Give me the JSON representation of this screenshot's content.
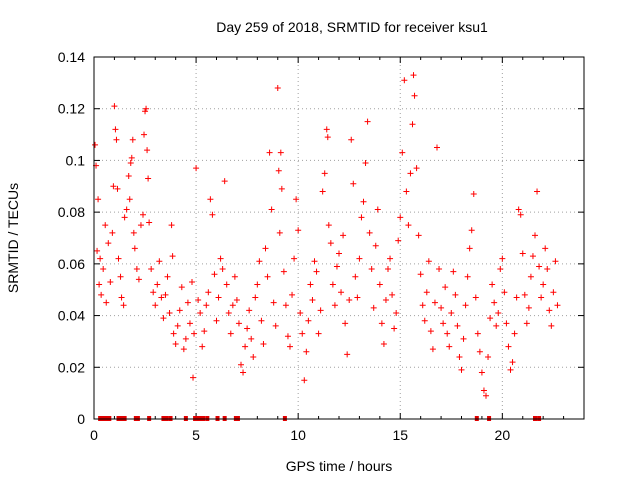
{
  "chart_data": {
    "type": "scatter",
    "title": "Day 259 of 2018, SRMTID for receiver ksu1",
    "xlabel": "GPS time / hours",
    "ylabel": "SRMTID / TECUs",
    "xlim": [
      0,
      24
    ],
    "ylim": [
      0,
      0.14
    ],
    "xticks": [
      0,
      5,
      10,
      15,
      20
    ],
    "xtick_labels": [
      "0",
      "5",
      "10",
      "15",
      "20"
    ],
    "yticks": [
      0,
      0.02,
      0.04,
      0.06,
      0.08,
      0.1,
      0.12,
      0.14
    ],
    "ytick_labels": [
      "0",
      "0.02",
      "0.04",
      "0.06",
      "0.08",
      "0.1",
      "0.12",
      "0.14"
    ],
    "grid": true,
    "marker": "plus",
    "color": "#ff0000",
    "series": [
      {
        "name": "SRMTID",
        "points": [
          [
            0.05,
            0.106
          ],
          [
            0.1,
            0.098
          ],
          [
            0.15,
            0.065
          ],
          [
            0.2,
            0.085
          ],
          [
            0.25,
            0.052
          ],
          [
            0.3,
            0.062
          ],
          [
            0.35,
            0.048
          ],
          [
            0.45,
            0.058
          ],
          [
            0.55,
            0.075
          ],
          [
            0.6,
            0.045
          ],
          [
            0.7,
            0.068
          ],
          [
            0.8,
            0.053
          ],
          [
            0.9,
            0.072
          ],
          [
            0.95,
            0.09
          ],
          [
            1.0,
            0.121
          ],
          [
            1.05,
            0.112
          ],
          [
            1.1,
            0.108
          ],
          [
            1.15,
            0.089
          ],
          [
            1.2,
            0.062
          ],
          [
            1.3,
            0.055
          ],
          [
            1.35,
            0.047
          ],
          [
            1.45,
            0.044
          ],
          [
            1.5,
            0.078
          ],
          [
            1.6,
            0.081
          ],
          [
            1.7,
            0.094
          ],
          [
            1.75,
            0.085
          ],
          [
            1.8,
            0.099
          ],
          [
            1.85,
            0.101
          ],
          [
            1.9,
            0.108
          ],
          [
            1.95,
            0.072
          ],
          [
            2.0,
            0.066
          ],
          [
            2.1,
            0.058
          ],
          [
            2.2,
            0.054
          ],
          [
            2.3,
            0.075
          ],
          [
            2.4,
            0.079
          ],
          [
            2.45,
            0.11
          ],
          [
            2.5,
            0.119
          ],
          [
            2.55,
            0.12
          ],
          [
            2.6,
            0.104
          ],
          [
            2.65,
            0.093
          ],
          [
            2.7,
            0.076
          ],
          [
            2.8,
            0.058
          ],
          [
            2.9,
            0.049
          ],
          [
            3.0,
            0.044
          ],
          [
            3.1,
            0.052
          ],
          [
            3.2,
            0.061
          ],
          [
            3.3,
            0.047
          ],
          [
            3.4,
            0.039
          ],
          [
            3.5,
            0.048
          ],
          [
            3.6,
            0.055
          ],
          [
            3.7,
            0.041
          ],
          [
            3.8,
            0.075
          ],
          [
            3.85,
            0.063
          ],
          [
            3.9,
            0.033
          ],
          [
            4.0,
            0.029
          ],
          [
            4.1,
            0.036
          ],
          [
            4.2,
            0.042
          ],
          [
            4.3,
            0.051
          ],
          [
            4.4,
            0.027
          ],
          [
            4.5,
            0.031
          ],
          [
            4.6,
            0.045
          ],
          [
            4.7,
            0.037
          ],
          [
            4.8,
            0.053
          ],
          [
            4.85,
            0.016
          ],
          [
            4.9,
            0.033
          ],
          [
            5.0,
            0.097
          ],
          [
            5.1,
            0.046
          ],
          [
            5.2,
            0.041
          ],
          [
            5.3,
            0.028
          ],
          [
            5.4,
            0.034
          ],
          [
            5.5,
            0.044
          ],
          [
            5.6,
            0.049
          ],
          [
            5.7,
            0.085
          ],
          [
            5.8,
            0.079
          ],
          [
            5.9,
            0.056
          ],
          [
            6.0,
            0.038
          ],
          [
            6.1,
            0.047
          ],
          [
            6.2,
            0.062
          ],
          [
            6.3,
            0.058
          ],
          [
            6.4,
            0.092
          ],
          [
            6.5,
            0.052
          ],
          [
            6.6,
            0.041
          ],
          [
            6.7,
            0.033
          ],
          [
            6.8,
            0.044
          ],
          [
            6.9,
            0.055
          ],
          [
            7.0,
            0.046
          ],
          [
            7.1,
            0.037
          ],
          [
            7.2,
            0.021
          ],
          [
            7.3,
            0.018
          ],
          [
            7.4,
            0.028
          ],
          [
            7.5,
            0.035
          ],
          [
            7.6,
            0.042
          ],
          [
            7.7,
            0.031
          ],
          [
            7.8,
            0.024
          ],
          [
            7.9,
            0.047
          ],
          [
            8.0,
            0.052
          ],
          [
            8.1,
            0.061
          ],
          [
            8.2,
            0.038
          ],
          [
            8.3,
            0.029
          ],
          [
            8.4,
            0.066
          ],
          [
            8.5,
            0.055
          ],
          [
            8.6,
            0.103
          ],
          [
            8.7,
            0.081
          ],
          [
            8.8,
            0.045
          ],
          [
            8.9,
            0.036
          ],
          [
            9.0,
            0.128
          ],
          [
            9.05,
            0.096
          ],
          [
            9.1,
            0.072
          ],
          [
            9.15,
            0.103
          ],
          [
            9.2,
            0.089
          ],
          [
            9.3,
            0.057
          ],
          [
            9.4,
            0.044
          ],
          [
            9.5,
            0.032
          ],
          [
            9.6,
            0.028
          ],
          [
            9.7,
            0.048
          ],
          [
            9.8,
            0.062
          ],
          [
            9.9,
            0.085
          ],
          [
            10.0,
            0.073
          ],
          [
            10.1,
            0.041
          ],
          [
            10.2,
            0.033
          ],
          [
            10.3,
            0.015
          ],
          [
            10.4,
            0.026
          ],
          [
            10.5,
            0.038
          ],
          [
            10.6,
            0.052
          ],
          [
            10.7,
            0.046
          ],
          [
            10.8,
            0.061
          ],
          [
            10.9,
            0.057
          ],
          [
            11.0,
            0.033
          ],
          [
            11.1,
            0.042
          ],
          [
            11.2,
            0.088
          ],
          [
            11.3,
            0.095
          ],
          [
            11.4,
            0.112
          ],
          [
            11.45,
            0.109
          ],
          [
            11.5,
            0.075
          ],
          [
            11.6,
            0.068
          ],
          [
            11.7,
            0.052
          ],
          [
            11.8,
            0.044
          ],
          [
            11.9,
            0.059
          ],
          [
            12.0,
            0.064
          ],
          [
            12.1,
            0.049
          ],
          [
            12.2,
            0.071
          ],
          [
            12.3,
            0.037
          ],
          [
            12.4,
            0.025
          ],
          [
            12.5,
            0.046
          ],
          [
            12.6,
            0.108
          ],
          [
            12.7,
            0.091
          ],
          [
            12.8,
            0.055
          ],
          [
            12.9,
            0.047
          ],
          [
            13.0,
            0.062
          ],
          [
            13.1,
            0.078
          ],
          [
            13.2,
            0.084
          ],
          [
            13.3,
            0.099
          ],
          [
            13.4,
            0.115
          ],
          [
            13.5,
            0.072
          ],
          [
            13.6,
            0.058
          ],
          [
            13.7,
            0.043
          ],
          [
            13.8,
            0.067
          ],
          [
            13.9,
            0.081
          ],
          [
            14.0,
            0.052
          ],
          [
            14.1,
            0.037
          ],
          [
            14.2,
            0.029
          ],
          [
            14.3,
            0.046
          ],
          [
            14.4,
            0.058
          ],
          [
            14.5,
            0.062
          ],
          [
            14.6,
            0.048
          ],
          [
            14.7,
            0.035
          ],
          [
            14.8,
            0.041
          ],
          [
            14.9,
            0.069
          ],
          [
            15.0,
            0.078
          ],
          [
            15.1,
            0.103
          ],
          [
            15.2,
            0.131
          ],
          [
            15.3,
            0.088
          ],
          [
            15.4,
            0.075
          ],
          [
            15.5,
            0.095
          ],
          [
            15.6,
            0.114
          ],
          [
            15.65,
            0.133
          ],
          [
            15.7,
            0.125
          ],
          [
            15.8,
            0.097
          ],
          [
            15.9,
            0.071
          ],
          [
            16.0,
            0.056
          ],
          [
            16.1,
            0.044
          ],
          [
            16.2,
            0.038
          ],
          [
            16.3,
            0.049
          ],
          [
            16.4,
            0.061
          ],
          [
            16.5,
            0.034
          ],
          [
            16.6,
            0.027
          ],
          [
            16.7,
            0.045
          ],
          [
            16.8,
            0.105
          ],
          [
            16.9,
            0.058
          ],
          [
            17.0,
            0.043
          ],
          [
            17.1,
            0.037
          ],
          [
            17.2,
            0.051
          ],
          [
            17.3,
            0.033
          ],
          [
            17.4,
            0.028
          ],
          [
            17.5,
            0.041
          ],
          [
            17.6,
            0.057
          ],
          [
            17.7,
            0.048
          ],
          [
            17.8,
            0.036
          ],
          [
            17.9,
            0.024
          ],
          [
            18.0,
            0.019
          ],
          [
            18.1,
            0.031
          ],
          [
            18.2,
            0.044
          ],
          [
            18.3,
            0.055
          ],
          [
            18.4,
            0.066
          ],
          [
            18.5,
            0.073
          ],
          [
            18.6,
            0.087
          ],
          [
            18.7,
            0.047
          ],
          [
            18.8,
            0.033
          ],
          [
            18.9,
            0.026
          ],
          [
            19.0,
            0.018
          ],
          [
            19.1,
            0.011
          ],
          [
            19.2,
            0.009
          ],
          [
            19.3,
            0.024
          ],
          [
            19.4,
            0.039
          ],
          [
            19.5,
            0.052
          ],
          [
            19.6,
            0.045
          ],
          [
            19.7,
            0.036
          ],
          [
            19.8,
            0.041
          ],
          [
            19.9,
            0.058
          ],
          [
            20.0,
            0.062
          ],
          [
            20.1,
            0.049
          ],
          [
            20.2,
            0.037
          ],
          [
            20.3,
            0.028
          ],
          [
            20.4,
            0.019
          ],
          [
            20.5,
            0.022
          ],
          [
            20.6,
            0.033
          ],
          [
            20.7,
            0.047
          ],
          [
            20.8,
            0.081
          ],
          [
            20.9,
            0.079
          ],
          [
            21.0,
            0.064
          ],
          [
            21.1,
            0.048
          ],
          [
            21.2,
            0.037
          ],
          [
            21.3,
            0.043
          ],
          [
            21.4,
            0.055
          ],
          [
            21.5,
            0.063
          ],
          [
            21.6,
            0.071
          ],
          [
            21.7,
            0.088
          ],
          [
            21.8,
            0.059
          ],
          [
            21.9,
            0.047
          ],
          [
            22.0,
            0.052
          ],
          [
            22.1,
            0.066
          ],
          [
            22.2,
            0.058
          ],
          [
            22.3,
            0.042
          ],
          [
            22.4,
            0.036
          ],
          [
            22.5,
            0.049
          ],
          [
            22.6,
            0.061
          ],
          [
            22.7,
            0.044
          ]
        ]
      }
    ],
    "zero_markers_x": [
      0.3,
      0.45,
      0.6,
      0.75,
      1.2,
      1.35,
      1.5,
      2.05,
      2.15,
      2.7,
      3.4,
      3.55,
      3.75,
      4.5,
      4.95,
      5.05,
      5.2,
      5.35,
      5.55,
      6.05,
      6.4,
      6.95,
      7.05,
      9.35,
      18.75,
      19.35,
      21.6,
      21.8
    ]
  }
}
